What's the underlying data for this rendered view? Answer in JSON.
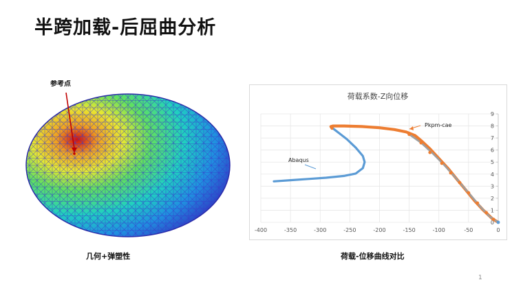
{
  "slide": {
    "title": "半跨加载-后屈曲分析",
    "page_number": "1"
  },
  "left_figure": {
    "annotation": "参考点",
    "caption": "几何+弹塑性"
  },
  "right_figure": {
    "caption": "荷载-位移曲线对比"
  },
  "colors": {
    "abaqus": "#5b9bd5",
    "pkpm": "#ed7d31",
    "pkpm_markers": "#ed7d31",
    "grey_line": "#9e9e9e",
    "mesh": "#3a3acb",
    "annotation_arrow": "#c00000"
  },
  "chart_data": {
    "type": "line",
    "title": "荷载系数-Z向位移",
    "xlabel": "",
    "ylabel": "",
    "xlim": [
      -400,
      0
    ],
    "ylim": [
      0,
      9
    ],
    "x_ticks": [
      "-400",
      "-350",
      "-300",
      "-250",
      "-200",
      "-150",
      "-100",
      "-50",
      "0"
    ],
    "y_ticks": [
      "0",
      "1",
      "2",
      "3",
      "4",
      "5",
      "6",
      "7",
      "8",
      "9"
    ],
    "grid": true,
    "series": [
      {
        "name": "Abaqus",
        "points": [
          [
            -378,
            3.4
          ],
          [
            -350,
            3.5
          ],
          [
            -320,
            3.6
          ],
          [
            -290,
            3.7
          ],
          [
            -260,
            3.85
          ],
          [
            -240,
            4.05
          ],
          [
            -228,
            4.5
          ],
          [
            -225,
            5.0
          ],
          [
            -228,
            5.5
          ],
          [
            -240,
            6.2
          ],
          [
            -255,
            6.9
          ],
          [
            -268,
            7.4
          ],
          [
            -276,
            7.7
          ],
          [
            -280,
            7.85
          ]
        ]
      },
      {
        "name": "Pkpm-cae",
        "points": [
          [
            -280,
            7.8
          ],
          [
            -282,
            7.95
          ],
          [
            -278,
            8.0
          ],
          [
            -260,
            8.0
          ],
          [
            -230,
            7.95
          ],
          [
            -200,
            7.85
          ],
          [
            -175,
            7.7
          ],
          [
            -155,
            7.5
          ],
          [
            -140,
            7.2
          ],
          [
            -128,
            6.7
          ],
          [
            -115,
            6.1
          ],
          [
            -100,
            5.3
          ],
          [
            -85,
            4.5
          ],
          [
            -70,
            3.6
          ],
          [
            -55,
            2.7
          ],
          [
            -40,
            1.8
          ],
          [
            -25,
            1.0
          ],
          [
            -10,
            0.3
          ],
          [
            0,
            0
          ]
        ]
      },
      {
        "name": "",
        "points": [
          [
            -150,
            7.3
          ],
          [
            -130,
            6.6
          ],
          [
            -110,
            5.7
          ],
          [
            -90,
            4.7
          ],
          [
            -70,
            3.6
          ],
          [
            -50,
            2.45
          ],
          [
            -30,
            1.3
          ],
          [
            -15,
            0.5
          ],
          [
            0,
            0
          ]
        ]
      }
    ],
    "markers": [
      [
        -150,
        7.3
      ],
      [
        -130,
        6.6
      ],
      [
        -115,
        5.8
      ],
      [
        -95,
        4.9
      ],
      [
        -80,
        4.1
      ],
      [
        -65,
        3.3
      ],
      [
        -50,
        2.45
      ],
      [
        -35,
        1.6
      ],
      [
        -20,
        0.8
      ],
      [
        -8,
        0.25
      ]
    ]
  }
}
